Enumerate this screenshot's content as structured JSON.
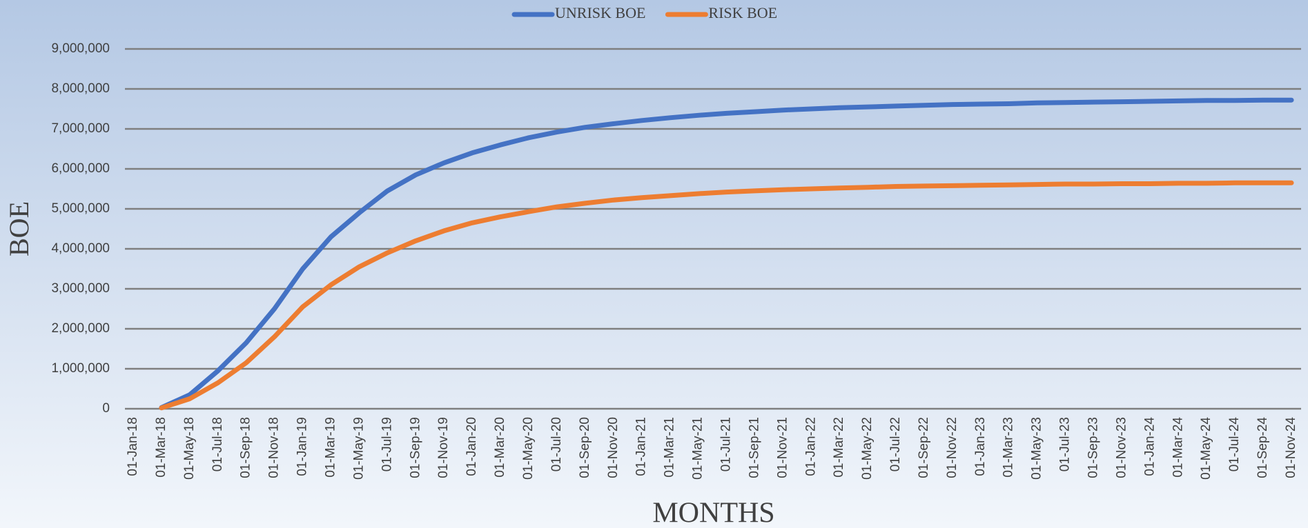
{
  "chart_data": {
    "type": "line",
    "x_label": "MONTHS",
    "y_label": "BOE",
    "categories": [
      "01-Jan-18",
      "01-Mar-18",
      "01-May-18",
      "01-Jul-18",
      "01-Sep-18",
      "01-Nov-18",
      "01-Jan-19",
      "01-Mar-19",
      "01-May-19",
      "01-Jul-19",
      "01-Sep-19",
      "01-Nov-19",
      "01-Jan-20",
      "01-Mar-20",
      "01-May-20",
      "01-Jul-20",
      "01-Sep-20",
      "01-Nov-20",
      "01-Jan-21",
      "01-Mar-21",
      "01-May-21",
      "01-Jul-21",
      "01-Sep-21",
      "01-Nov-21",
      "01-Jan-22",
      "01-Mar-22",
      "01-May-22",
      "01-Jul-22",
      "01-Sep-22",
      "01-Nov-22",
      "01-Jan-23",
      "01-Mar-23",
      "01-May-23",
      "01-Jul-23",
      "01-Sep-23",
      "01-Nov-23",
      "01-Jan-24",
      "01-Mar-24",
      "01-May-24",
      "01-Jul-24",
      "01-Sep-24",
      "01-Nov-24"
    ],
    "series": [
      {
        "name": "UNRISK BOE",
        "color": "#4472c4",
        "values": [
          null,
          30000,
          350000,
          950000,
          1650000,
          2500000,
          3500000,
          4300000,
          4900000,
          5450000,
          5850000,
          6150000,
          6400000,
          6600000,
          6780000,
          6920000,
          7040000,
          7130000,
          7210000,
          7280000,
          7340000,
          7390000,
          7430000,
          7470000,
          7500000,
          7530000,
          7550000,
          7570000,
          7590000,
          7610000,
          7620000,
          7630000,
          7650000,
          7660000,
          7670000,
          7680000,
          7690000,
          7700000,
          7710000,
          7710000,
          7720000,
          7720000
        ]
      },
      {
        "name": "RISK BOE",
        "color": "#ed7d31",
        "values": [
          null,
          20000,
          250000,
          650000,
          1150000,
          1800000,
          2550000,
          3100000,
          3550000,
          3900000,
          4200000,
          4450000,
          4650000,
          4800000,
          4930000,
          5050000,
          5140000,
          5220000,
          5280000,
          5330000,
          5380000,
          5420000,
          5450000,
          5480000,
          5500000,
          5520000,
          5540000,
          5560000,
          5570000,
          5580000,
          5590000,
          5600000,
          5610000,
          5620000,
          5620000,
          5630000,
          5630000,
          5640000,
          5640000,
          5650000,
          5650000,
          5650000
        ]
      }
    ],
    "ylim": [
      0,
      9000000
    ],
    "yticks": [
      0,
      {
        "value": 1000000,
        "label": "1,000,000"
      },
      {
        "value": 2000000,
        "label": "2,000,000"
      },
      {
        "value": 3000000,
        "label": "3,000,000"
      },
      {
        "value": 4000000,
        "label": "4,000,000"
      },
      {
        "value": 5000000,
        "label": "5,000,000"
      },
      {
        "value": 6000000,
        "label": "6,000,000"
      },
      {
        "value": 7000000,
        "label": "7,000,000"
      },
      {
        "value": 8000000,
        "label": "8,000,000"
      },
      {
        "value": 9000000,
        "label": "9,000,000"
      }
    ],
    "grid": true,
    "legend": "top"
  }
}
